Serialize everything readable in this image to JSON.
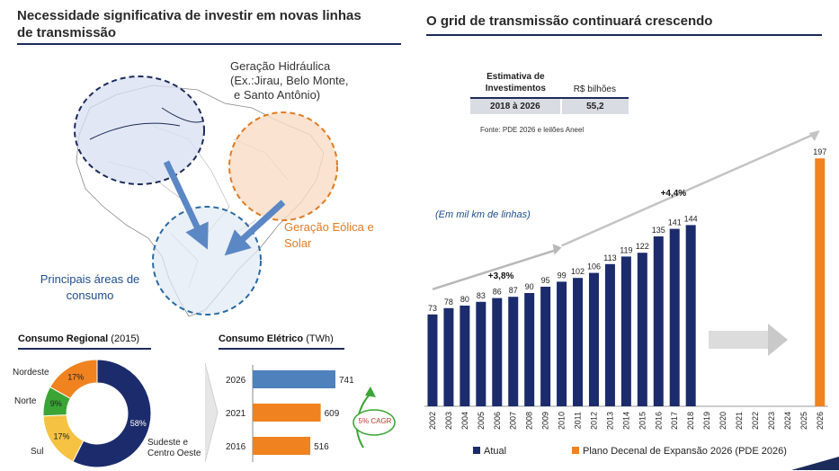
{
  "left": {
    "title_line1": "Necessidade significativa de investir em novas linhas",
    "title_line2": "de transmissão",
    "map": {
      "hydro_line1": "Geração Hidráulica",
      "hydro_line2": "(Ex.:Jirau, Belo Monte,",
      "hydro_line3": "e Santo Antônio)",
      "wind_line1": "Geração Eólica e",
      "wind_line2": "Solar",
      "consumo_line1": "Principais áreas de",
      "consumo_line2": "consumo"
    },
    "regional": {
      "title": "Consumo Regional",
      "unit": "(2015)",
      "labels": {
        "nordeste": "Nordeste",
        "norte": "Norte",
        "sul": "Sul",
        "sudeste_line1": "Sudeste e",
        "sudeste_line2": "Centro Oeste"
      }
    },
    "eletrico": {
      "title": "Consumo Elétrico",
      "unit": "(TWh)",
      "cagr": "5% CAGR"
    }
  },
  "right": {
    "title": "O grid de transmissão continuará crescendo",
    "table": {
      "head_col1_line1": "Estimativa de",
      "head_col1_line2": "Investimentos",
      "head_col2": "R$ bilhões",
      "row_period": "2018 à 2026",
      "row_value": "55,2"
    },
    "source": "Fonte: PDE 2026 e leilões Aneel",
    "unit_note": "(Em mil km de linhas)",
    "growth_1": "+3,8%",
    "growth_2": "+4,4%",
    "legend_actual": "Atual",
    "legend_plan": "Plano Decenal de Expansão 2026 (PDE 2026)"
  },
  "colors": {
    "navy": "#1c2b6b",
    "orange": "#f0821f",
    "blue_bar": "#4f81bd",
    "green": "#3aa535",
    "yellow": "#f5c242"
  },
  "chart_data": [
    {
      "type": "bar",
      "title": "O grid de transmissão continuará crescendo",
      "ylabel": "(Em mil km de linhas)",
      "categories": [
        "2002",
        "2003",
        "2004",
        "2005",
        "2006",
        "2007",
        "2008",
        "2009",
        "2010",
        "2011",
        "2012",
        "2013",
        "2014",
        "2015",
        "2016",
        "2017",
        "2018",
        "2019",
        "2020",
        "2021",
        "2022",
        "2023",
        "2024",
        "2025",
        "2026"
      ],
      "series": [
        {
          "name": "Atual",
          "values": [
            73,
            78,
            80,
            83,
            86,
            87,
            90,
            95,
            99,
            102,
            106,
            113,
            119,
            122,
            135,
            141,
            144,
            null,
            null,
            null,
            null,
            null,
            null,
            null,
            null
          ]
        },
        {
          "name": "Plano Decenal de Expansão 2026 (PDE 2026)",
          "values": [
            null,
            null,
            null,
            null,
            null,
            null,
            null,
            null,
            null,
            null,
            null,
            null,
            null,
            null,
            null,
            null,
            null,
            null,
            null,
            null,
            null,
            null,
            null,
            null,
            197
          ]
        }
      ],
      "ylim": [
        0,
        200
      ],
      "legend": "bottom"
    },
    {
      "type": "pie",
      "title": "Consumo Regional (2015)",
      "categories": [
        "Sudeste e Centro Oeste",
        "Sul",
        "Norte",
        "Nordeste"
      ],
      "values": [
        58,
        17,
        9,
        17
      ],
      "value_labels": [
        "58%",
        "17%",
        "9%",
        "17%"
      ]
    },
    {
      "type": "bar",
      "orientation": "horizontal",
      "title": "Consumo Elétrico (TWh)",
      "categories": [
        "2026",
        "2021",
        "2016"
      ],
      "values": [
        741,
        609,
        516
      ]
    }
  ]
}
